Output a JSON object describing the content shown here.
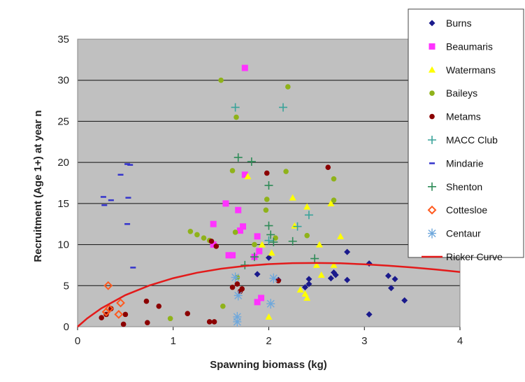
{
  "chart_data": {
    "type": "scatter",
    "xlabel": "Spawning biomass (kg)",
    "ylabel": "Recruitment (Age 1+) at year n",
    "xlim": [
      0,
      4
    ],
    "ylim": [
      0,
      35
    ],
    "x_ticks": [
      "0",
      "1",
      "2",
      "3",
      "4"
    ],
    "y_ticks": [
      "0",
      "5",
      "10",
      "15",
      "20",
      "25",
      "30",
      "35"
    ],
    "grid": "horizontal",
    "legend_position": "right",
    "series": [
      {
        "name": "Burns",
        "marker": "diamond",
        "color": "#1a1a8c",
        "points": [
          [
            1.88,
            6.4
          ],
          [
            2.0,
            8.4
          ],
          [
            2.1,
            5.7
          ],
          [
            2.38,
            4.8
          ],
          [
            2.42,
            5.8
          ],
          [
            2.42,
            5.2
          ],
          [
            2.65,
            5.9
          ],
          [
            2.68,
            6.6
          ],
          [
            2.7,
            6.3
          ],
          [
            2.82,
            9.1
          ],
          [
            2.82,
            5.7
          ],
          [
            3.05,
            7.7
          ],
          [
            3.05,
            1.5
          ],
          [
            3.25,
            6.2
          ],
          [
            3.28,
            4.7
          ],
          [
            3.32,
            5.8
          ],
          [
            3.42,
            3.2
          ]
        ]
      },
      {
        "name": "Beaumaris",
        "marker": "square",
        "color": "#ff33ff",
        "points": [
          [
            1.42,
            12.5
          ],
          [
            1.42,
            10.0
          ],
          [
            1.55,
            15.0
          ],
          [
            1.58,
            8.7
          ],
          [
            1.62,
            8.7
          ],
          [
            1.68,
            14.2
          ],
          [
            1.7,
            11.7
          ],
          [
            1.73,
            12.2
          ],
          [
            1.75,
            18.5
          ],
          [
            1.75,
            31.5
          ],
          [
            1.85,
            8.5
          ],
          [
            1.88,
            3.0
          ],
          [
            1.88,
            11.0
          ],
          [
            1.9,
            9.2
          ],
          [
            1.92,
            3.5
          ]
        ]
      },
      {
        "name": "Watermans",
        "marker": "triangle",
        "color": "#ffff00",
        "points": [
          [
            1.78,
            18.3
          ],
          [
            1.93,
            10.0
          ],
          [
            2.0,
            1.2
          ],
          [
            2.03,
            9.0
          ],
          [
            2.25,
            15.7
          ],
          [
            2.27,
            12.3
          ],
          [
            2.33,
            4.5
          ],
          [
            2.4,
            14.6
          ],
          [
            2.4,
            3.5
          ],
          [
            2.5,
            7.5
          ],
          [
            2.53,
            10.0
          ],
          [
            2.55,
            6.3
          ],
          [
            2.65,
            15.0
          ],
          [
            2.68,
            7.5
          ],
          [
            2.75,
            11.0
          ],
          [
            2.38,
            4.0
          ]
        ]
      },
      {
        "name": "Baileys",
        "marker": "dot",
        "color": "#8fb21a",
        "points": [
          [
            0.97,
            1.0
          ],
          [
            1.18,
            11.6
          ],
          [
            1.25,
            11.2
          ],
          [
            1.32,
            10.8
          ],
          [
            1.38,
            10.5
          ],
          [
            1.5,
            30.0
          ],
          [
            1.52,
            2.5
          ],
          [
            1.62,
            19.0
          ],
          [
            1.66,
            25.5
          ],
          [
            1.67,
            6.0
          ],
          [
            1.85,
            10.0
          ],
          [
            1.97,
            14.2
          ],
          [
            1.98,
            15.5
          ],
          [
            2.07,
            10.8
          ],
          [
            2.18,
            18.9
          ],
          [
            2.2,
            29.2
          ],
          [
            2.4,
            11.1
          ],
          [
            2.68,
            18.0
          ],
          [
            2.68,
            15.4
          ],
          [
            1.65,
            11.5
          ]
        ]
      },
      {
        "name": "Metams",
        "marker": "dot",
        "color": "#8b0000",
        "points": [
          [
            0.25,
            1.1
          ],
          [
            0.3,
            1.5
          ],
          [
            0.35,
            2.2
          ],
          [
            0.48,
            0.3
          ],
          [
            0.5,
            1.5
          ],
          [
            0.72,
            3.1
          ],
          [
            0.73,
            0.5
          ],
          [
            0.85,
            2.5
          ],
          [
            1.15,
            1.6
          ],
          [
            1.38,
            0.6
          ],
          [
            1.43,
            0.6
          ],
          [
            1.4,
            10.4
          ],
          [
            1.45,
            9.8
          ],
          [
            1.62,
            4.8
          ],
          [
            1.67,
            5.2
          ],
          [
            1.7,
            4.3
          ],
          [
            1.72,
            4.6
          ],
          [
            1.98,
            18.7
          ],
          [
            2.1,
            5.6
          ],
          [
            2.62,
            19.4
          ]
        ]
      },
      {
        "name": "MACC Club",
        "marker": "plus",
        "color": "#3aa39a",
        "points": [
          [
            1.65,
            26.7
          ],
          [
            2.15,
            26.7
          ],
          [
            2.0,
            10.5
          ],
          [
            2.3,
            12.2
          ],
          [
            2.42,
            13.6
          ]
        ]
      },
      {
        "name": "Mindarie",
        "marker": "dash",
        "color": "#3333cc",
        "points": [
          [
            0.27,
            15.8
          ],
          [
            0.28,
            14.8
          ],
          [
            0.35,
            15.4
          ],
          [
            0.45,
            18.5
          ],
          [
            0.52,
            19.8
          ],
          [
            0.55,
            19.7
          ],
          [
            0.53,
            15.7
          ],
          [
            0.52,
            12.5
          ],
          [
            0.58,
            7.2
          ]
        ]
      },
      {
        "name": "Shenton",
        "marker": "plus",
        "color": "#2e8b57",
        "points": [
          [
            1.68,
            20.6
          ],
          [
            1.82,
            20.1
          ],
          [
            1.85,
            8.5
          ],
          [
            1.75,
            7.5
          ],
          [
            2.0,
            17.2
          ],
          [
            2.0,
            12.3
          ],
          [
            2.02,
            11.2
          ],
          [
            2.05,
            10.3
          ],
          [
            2.25,
            10.4
          ],
          [
            2.48,
            8.3
          ]
        ]
      },
      {
        "name": "Cottesloe",
        "marker": "diamond-open",
        "color": "#ff5a1f",
        "points": [
          [
            0.3,
            1.8
          ],
          [
            0.32,
            5.0
          ],
          [
            0.33,
            2.2
          ],
          [
            0.43,
            1.5
          ],
          [
            0.45,
            2.9
          ]
        ]
      },
      {
        "name": "Centaur",
        "marker": "asterisk",
        "color": "#6fa8dc",
        "points": [
          [
            1.65,
            6.0
          ],
          [
            1.67,
            1.2
          ],
          [
            1.67,
            0.6
          ],
          [
            1.68,
            3.8
          ],
          [
            2.02,
            2.8
          ],
          [
            2.05,
            5.9
          ]
        ]
      },
      {
        "name": "Ricker Curve",
        "marker": "line",
        "color": "#e31a1a",
        "points": [
          [
            0,
            0
          ],
          [
            0.1,
            1.01
          ],
          [
            0.25,
            2.26
          ],
          [
            0.5,
            3.85
          ],
          [
            0.75,
            5.02
          ],
          [
            1.0,
            5.91
          ],
          [
            1.25,
            6.57
          ],
          [
            1.5,
            7.06
          ],
          [
            1.75,
            7.4
          ],
          [
            2.0,
            7.62
          ],
          [
            2.25,
            7.74
          ],
          [
            2.5,
            7.76
          ],
          [
            2.75,
            7.72
          ],
          [
            3.0,
            7.6
          ],
          [
            3.25,
            7.43
          ],
          [
            3.5,
            7.21
          ],
          [
            3.75,
            6.96
          ],
          [
            4.0,
            6.67
          ]
        ]
      }
    ]
  }
}
